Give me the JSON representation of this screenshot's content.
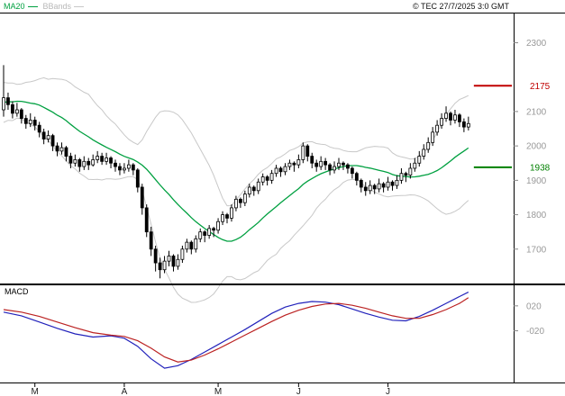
{
  "header": {
    "copyright": "© TEC 27/7/2025 3:0 GMT"
  },
  "legend": {
    "ma20": "MA20",
    "bbands": "BBands"
  },
  "macd_label": "MACD",
  "colors": {
    "ma20": "#00a040",
    "bbands": "#c8c8c8",
    "candle": "#000000",
    "macd_line": "#2222bb",
    "signal_line": "#bb2222",
    "axis_text": "#999999",
    "month_text": "#222222"
  },
  "chart_data": {
    "type": "candlestick",
    "title": "",
    "months": [
      {
        "label": "M",
        "day": 7
      },
      {
        "label": "A",
        "day": 27
      },
      {
        "label": "M",
        "day": 48
      },
      {
        "label": "J",
        "day": 66
      },
      {
        "label": "J",
        "day": 86
      }
    ],
    "price_panel": {
      "y_range": [
        1600,
        2385
      ],
      "yticks": [
        2300,
        2100,
        2000,
        1900,
        1800,
        1700
      ],
      "levels": [
        {
          "value": 2175,
          "label": "2175",
          "color": "#c00000"
        },
        {
          "value": 1938,
          "label": "1938",
          "color": "#008000"
        }
      ],
      "indicators": {
        "ma_window": 20,
        "bband_mult": 2
      },
      "pre_closes": [
        2060,
        2080,
        2100,
        2070,
        2090,
        2110,
        2130,
        2100,
        2120,
        2150,
        2170,
        2140,
        2160,
        2130,
        2150,
        2170,
        2160,
        2140,
        2120,
        2100
      ],
      "candles": [
        [
          2105,
          2235,
          2085,
          2140
        ],
        [
          2140,
          2155,
          2105,
          2120
        ],
        [
          2120,
          2130,
          2080,
          2095
        ],
        [
          2095,
          2125,
          2085,
          2105
        ],
        [
          2105,
          2110,
          2065,
          2080
        ],
        [
          2080,
          2090,
          2050,
          2065
        ],
        [
          2065,
          2095,
          2055,
          2075
        ],
        [
          2075,
          2085,
          2045,
          2060
        ],
        [
          2060,
          2070,
          2025,
          2040
        ],
        [
          2040,
          2050,
          2005,
          2020
        ],
        [
          2020,
          2045,
          2010,
          2030
        ],
        [
          2030,
          2035,
          1985,
          2000
        ],
        [
          2000,
          2010,
          1970,
          1985
        ],
        [
          1985,
          2010,
          1975,
          1995
        ],
        [
          1995,
          2000,
          1955,
          1970
        ],
        [
          1970,
          1980,
          1935,
          1950
        ],
        [
          1950,
          1975,
          1940,
          1960
        ],
        [
          1960,
          1965,
          1925,
          1940
        ],
        [
          1940,
          1970,
          1930,
          1955
        ],
        [
          1955,
          1965,
          1930,
          1945
        ],
        [
          1945,
          1975,
          1940,
          1960
        ],
        [
          1960,
          1985,
          1950,
          1970
        ],
        [
          1970,
          1980,
          1945,
          1955
        ],
        [
          1955,
          1980,
          1945,
          1965
        ],
        [
          1965,
          1970,
          1935,
          1950
        ],
        [
          1950,
          1960,
          1925,
          1940
        ],
        [
          1940,
          1950,
          1915,
          1930
        ],
        [
          1930,
          1950,
          1920,
          1935
        ],
        [
          1935,
          1960,
          1925,
          1945
        ],
        [
          1945,
          1950,
          1915,
          1930
        ],
        [
          1930,
          1935,
          1865,
          1880
        ],
        [
          1880,
          1890,
          1800,
          1820
        ],
        [
          1820,
          1830,
          1735,
          1750
        ],
        [
          1750,
          1765,
          1680,
          1700
        ],
        [
          1700,
          1710,
          1635,
          1660
        ],
        [
          1660,
          1675,
          1615,
          1640
        ],
        [
          1640,
          1680,
          1630,
          1665
        ],
        [
          1665,
          1695,
          1650,
          1680
        ],
        [
          1680,
          1685,
          1635,
          1650
        ],
        [
          1650,
          1685,
          1640,
          1670
        ],
        [
          1670,
          1710,
          1660,
          1700
        ],
        [
          1700,
          1730,
          1690,
          1720
        ],
        [
          1720,
          1725,
          1685,
          1700
        ],
        [
          1700,
          1740,
          1690,
          1730
        ],
        [
          1730,
          1760,
          1720,
          1750
        ],
        [
          1750,
          1755,
          1720,
          1740
        ],
        [
          1740,
          1770,
          1730,
          1760
        ],
        [
          1760,
          1765,
          1735,
          1755
        ],
        [
          1755,
          1790,
          1745,
          1780
        ],
        [
          1780,
          1810,
          1770,
          1800
        ],
        [
          1800,
          1805,
          1775,
          1790
        ],
        [
          1790,
          1830,
          1780,
          1820
        ],
        [
          1820,
          1855,
          1810,
          1845
        ],
        [
          1845,
          1850,
          1820,
          1835
        ],
        [
          1835,
          1870,
          1825,
          1860
        ],
        [
          1860,
          1890,
          1850,
          1880
        ],
        [
          1880,
          1885,
          1855,
          1870
        ],
        [
          1870,
          1905,
          1860,
          1895
        ],
        [
          1895,
          1920,
          1885,
          1910
        ],
        [
          1910,
          1915,
          1885,
          1900
        ],
        [
          1900,
          1930,
          1890,
          1920
        ],
        [
          1920,
          1945,
          1910,
          1935
        ],
        [
          1935,
          1940,
          1910,
          1925
        ],
        [
          1925,
          1950,
          1915,
          1940
        ],
        [
          1940,
          1960,
          1930,
          1950
        ],
        [
          1950,
          1955,
          1925,
          1945
        ],
        [
          1945,
          1975,
          1935,
          1960
        ],
        [
          1960,
          2010,
          1950,
          2000
        ],
        [
          2000,
          2005,
          1955,
          1970
        ],
        [
          1970,
          1980,
          1935,
          1950
        ],
        [
          1950,
          1960,
          1925,
          1940
        ],
        [
          1940,
          1970,
          1930,
          1955
        ],
        [
          1955,
          1965,
          1930,
          1945
        ],
        [
          1945,
          1950,
          1915,
          1930
        ],
        [
          1930,
          1955,
          1920,
          1940
        ],
        [
          1940,
          1965,
          1930,
          1950
        ],
        [
          1950,
          1955,
          1930,
          1945
        ],
        [
          1945,
          1950,
          1920,
          1935
        ],
        [
          1935,
          1940,
          1905,
          1920
        ],
        [
          1920,
          1925,
          1885,
          1900
        ],
        [
          1900,
          1905,
          1865,
          1880
        ],
        [
          1880,
          1895,
          1855,
          1870
        ],
        [
          1870,
          1900,
          1860,
          1885
        ],
        [
          1885,
          1890,
          1860,
          1875
        ],
        [
          1875,
          1905,
          1865,
          1890
        ],
        [
          1890,
          1895,
          1865,
          1880
        ],
        [
          1880,
          1910,
          1870,
          1895
        ],
        [
          1895,
          1900,
          1870,
          1885
        ],
        [
          1885,
          1915,
          1875,
          1900
        ],
        [
          1900,
          1935,
          1890,
          1920
        ],
        [
          1920,
          1925,
          1895,
          1915
        ],
        [
          1915,
          1950,
          1905,
          1935
        ],
        [
          1935,
          1965,
          1925,
          1950
        ],
        [
          1950,
          1985,
          1940,
          1970
        ],
        [
          1970,
          2005,
          1960,
          1990
        ],
        [
          1990,
          2025,
          1980,
          2010
        ],
        [
          2010,
          2055,
          2000,
          2040
        ],
        [
          2040,
          2075,
          2030,
          2060
        ],
        [
          2060,
          2095,
          2050,
          2080
        ],
        [
          2080,
          2115,
          2070,
          2095
        ],
        [
          2095,
          2100,
          2060,
          2075
        ],
        [
          2075,
          2105,
          2065,
          2090
        ],
        [
          2090,
          2095,
          2055,
          2070
        ],
        [
          2070,
          2080,
          2040,
          2055
        ],
        [
          2055,
          2085,
          2045,
          2065
        ]
      ]
    },
    "macd_panel": {
      "y_range": [
        -1.03,
        0.53
      ],
      "yticks": [
        {
          "value": 0.2,
          "label": "020"
        },
        {
          "value": -0.2,
          "label": "-020"
        }
      ],
      "macd_line": [
        [
          0,
          0.1
        ],
        [
          4,
          0.04
        ],
        [
          8,
          -0.06
        ],
        [
          12,
          -0.16
        ],
        [
          16,
          -0.25
        ],
        [
          20,
          -0.3
        ],
        [
          24,
          -0.28
        ],
        [
          27,
          -0.32
        ],
        [
          30,
          -0.45
        ],
        [
          33,
          -0.65
        ],
        [
          36,
          -0.8
        ],
        [
          39,
          -0.76
        ],
        [
          42,
          -0.66
        ],
        [
          45,
          -0.54
        ],
        [
          48,
          -0.42
        ],
        [
          51,
          -0.3
        ],
        [
          54,
          -0.18
        ],
        [
          57,
          -0.05
        ],
        [
          60,
          0.08
        ],
        [
          63,
          0.18
        ],
        [
          66,
          0.24
        ],
        [
          69,
          0.27
        ],
        [
          72,
          0.26
        ],
        [
          75,
          0.22
        ],
        [
          78,
          0.15
        ],
        [
          81,
          0.08
        ],
        [
          84,
          0.02
        ],
        [
          87,
          -0.03
        ],
        [
          90,
          -0.04
        ],
        [
          93,
          0.03
        ],
        [
          96,
          0.13
        ],
        [
          99,
          0.24
        ],
        [
          102,
          0.35
        ],
        [
          104,
          0.42
        ]
      ],
      "signal_line": [
        [
          0,
          0.14
        ],
        [
          4,
          0.1
        ],
        [
          8,
          0.03
        ],
        [
          12,
          -0.06
        ],
        [
          16,
          -0.15
        ],
        [
          20,
          -0.23
        ],
        [
          24,
          -0.27
        ],
        [
          27,
          -0.29
        ],
        [
          30,
          -0.36
        ],
        [
          33,
          -0.48
        ],
        [
          36,
          -0.62
        ],
        [
          39,
          -0.7
        ],
        [
          42,
          -0.67
        ],
        [
          45,
          -0.59
        ],
        [
          48,
          -0.49
        ],
        [
          51,
          -0.38
        ],
        [
          54,
          -0.27
        ],
        [
          57,
          -0.16
        ],
        [
          60,
          -0.05
        ],
        [
          63,
          0.05
        ],
        [
          66,
          0.13
        ],
        [
          69,
          0.19
        ],
        [
          72,
          0.23
        ],
        [
          75,
          0.24
        ],
        [
          78,
          0.21
        ],
        [
          81,
          0.16
        ],
        [
          84,
          0.1
        ],
        [
          87,
          0.04
        ],
        [
          90,
          0.0
        ],
        [
          93,
          0.0
        ],
        [
          96,
          0.06
        ],
        [
          99,
          0.14
        ],
        [
          102,
          0.24
        ],
        [
          104,
          0.33
        ]
      ]
    }
  }
}
